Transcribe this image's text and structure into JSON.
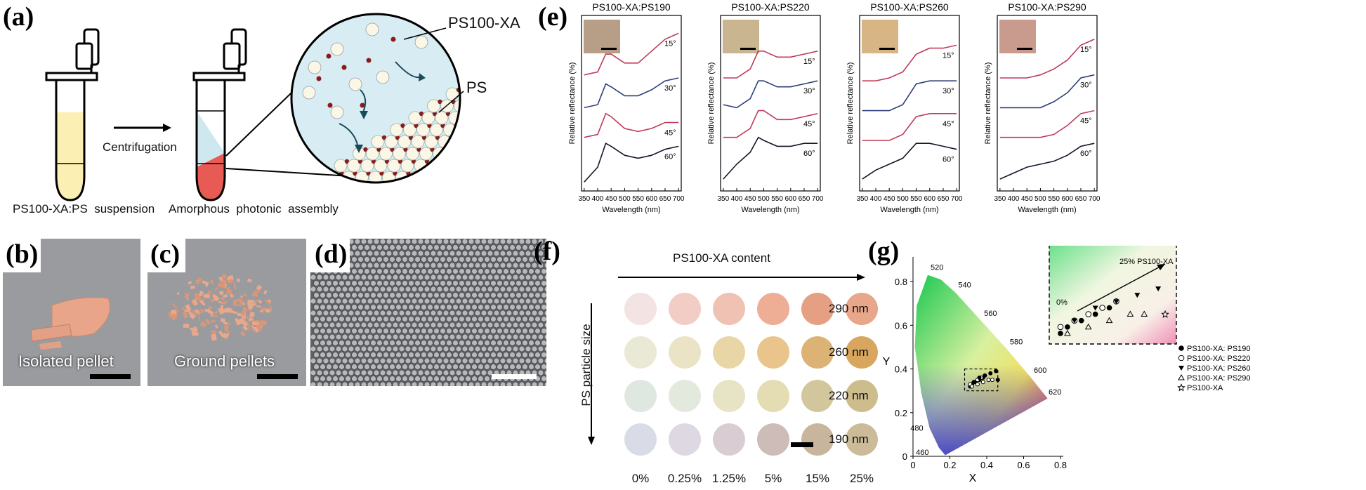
{
  "panel_a": {
    "letter": "(a)",
    "centrifugation": "Centrifugation",
    "suspension_caption": "PS100-XA:PS  suspension",
    "assembly_caption": "Amorphous  photonic  assembly",
    "label_xa": "PS100-XA",
    "label_ps": "PS"
  },
  "panel_b": {
    "letter": "(b)",
    "label": "Isolated pellet"
  },
  "panel_c": {
    "letter": "(c)",
    "label": "Ground pellets"
  },
  "panel_d": {
    "letter": "(d)"
  },
  "panel_e": {
    "letter": "(e)",
    "charts": [
      {
        "title": "PS100-XA:PS190",
        "inset": "#b79e86"
      },
      {
        "title": "PS100-XA:PS220",
        "inset": "#c9b590"
      },
      {
        "title": "PS100-XA:PS260",
        "inset": "#d7b585"
      },
      {
        "title": "PS100-XA:PS290",
        "inset": "#c99a8e"
      }
    ],
    "ylabel": "Relative reflectance (%)",
    "xlabel": "Wavelength (nm)",
    "xticks": [
      "350",
      "400",
      "450",
      "500",
      "550",
      "600",
      "650",
      "700"
    ],
    "angles": [
      "15°",
      "30°",
      "45°",
      "60°"
    ],
    "colors": [
      "#c03a5a",
      "#2d3f7a",
      "#c03a5a",
      "#101828"
    ]
  },
  "panel_f": {
    "letter": "(f)",
    "top_label": "PS100-XA content",
    "side_label": "PS particle size",
    "sizes": [
      "290 nm",
      "260 nm",
      "220 nm",
      "190 nm"
    ],
    "contents": [
      "0%",
      "0.25%",
      "1.25%",
      "5%",
      "15%",
      "25%"
    ],
    "swatches": [
      [
        "#f3e3e3",
        "#f1cdc6",
        "#f0c2b4",
        "#eeae96",
        "#e59f83",
        "#e8a68b"
      ],
      [
        "#e9e9d6",
        "#ebe3c6",
        "#e9d6a6",
        "#e9c58c",
        "#dcb275",
        "#d8a65f"
      ],
      [
        "#dfe8e0",
        "#e3eadd",
        "#e7e4c5",
        "#e4dcb3",
        "#d1c69c",
        "#cdbc8c"
      ],
      [
        "#d9dbe6",
        "#ddd8e2",
        "#d9cdd3",
        "#cdbcb8",
        "#c8b59e",
        "#cbbb98"
      ]
    ]
  },
  "panel_g": {
    "letter": "(g)",
    "inset_label": "25% PS100-XA",
    "inset_zero": "0%",
    "legend": [
      "PS100-XA: PS190",
      "PS100-XA: PS220",
      "PS100-XA: PS260",
      "PS100-XA: PS290",
      "PS100-XA"
    ],
    "xlabel": "X",
    "ylabel": "Y",
    "xticks": [
      "0",
      "0.2",
      "0.4",
      "0.6",
      "0.8"
    ],
    "yticks": [
      "0",
      "0.2",
      "0.4",
      "0.6",
      "0.8"
    ],
    "wavelength_marks": [
      "520",
      "540",
      "560",
      "580",
      "600",
      "620",
      "480",
      "460"
    ]
  },
  "chart_data": [
    {
      "type": "line",
      "title": "PS100-XA:PS190",
      "xlabel": "Wavelength (nm)",
      "ylabel": "Relative reflectance (%)",
      "xlim": [
        340,
        710
      ],
      "series": [
        {
          "name": "15°",
          "x": [
            350,
            400,
            430,
            450,
            500,
            550,
            600,
            650,
            700
          ],
          "y": [
            3.6,
            3.7,
            4.3,
            4.3,
            4.0,
            4.0,
            4.4,
            4.8,
            5.0
          ]
        },
        {
          "name": "30°",
          "x": [
            350,
            400,
            430,
            450,
            500,
            550,
            600,
            650,
            700
          ],
          "y": [
            2.5,
            2.6,
            3.3,
            3.2,
            2.9,
            2.9,
            3.1,
            3.4,
            3.5
          ]
        },
        {
          "name": "45°",
          "x": [
            350,
            400,
            430,
            450,
            500,
            550,
            600,
            650,
            700
          ],
          "y": [
            1.5,
            1.6,
            2.3,
            2.2,
            1.8,
            1.7,
            1.8,
            2.0,
            2.0
          ]
        },
        {
          "name": "60°",
          "x": [
            350,
            400,
            430,
            450,
            500,
            550,
            600,
            650,
            700
          ],
          "y": [
            0.0,
            0.5,
            1.3,
            1.2,
            0.9,
            0.8,
            0.9,
            1.1,
            1.2
          ]
        }
      ]
    },
    {
      "type": "line",
      "title": "PS100-XA:PS220",
      "xlabel": "Wavelength (nm)",
      "ylabel": "Relative reflectance (%)",
      "xlim": [
        340,
        710
      ],
      "series": [
        {
          "name": "15°",
          "x": [
            350,
            400,
            450,
            480,
            500,
            550,
            600,
            650,
            700
          ],
          "y": [
            3.5,
            3.5,
            3.8,
            4.4,
            4.4,
            4.2,
            4.2,
            4.3,
            4.4
          ]
        },
        {
          "name": "30°",
          "x": [
            350,
            400,
            450,
            480,
            500,
            550,
            600,
            650,
            700
          ],
          "y": [
            2.6,
            2.5,
            2.8,
            3.4,
            3.4,
            3.2,
            3.2,
            3.3,
            3.4
          ]
        },
        {
          "name": "45°",
          "x": [
            350,
            400,
            450,
            480,
            500,
            550,
            600,
            650,
            700
          ],
          "y": [
            1.5,
            1.5,
            1.8,
            2.4,
            2.4,
            2.1,
            2.1,
            2.2,
            2.3
          ]
        },
        {
          "name": "60°",
          "x": [
            350,
            400,
            450,
            480,
            500,
            550,
            600,
            650,
            700
          ],
          "y": [
            0.1,
            0.6,
            1.0,
            1.5,
            1.4,
            1.2,
            1.2,
            1.3,
            1.3
          ]
        }
      ]
    },
    {
      "type": "line",
      "title": "PS100-XA:PS260",
      "xlabel": "Wavelength (nm)",
      "ylabel": "Relative reflectance (%)",
      "xlim": [
        340,
        710
      ],
      "series": [
        {
          "name": "15°",
          "x": [
            350,
            400,
            450,
            500,
            550,
            600,
            650,
            700
          ],
          "y": [
            3.4,
            3.4,
            3.5,
            3.7,
            4.3,
            4.5,
            4.5,
            4.6
          ]
        },
        {
          "name": "30°",
          "x": [
            350,
            400,
            450,
            500,
            550,
            600,
            650,
            700
          ],
          "y": [
            2.4,
            2.4,
            2.4,
            2.6,
            3.3,
            3.4,
            3.4,
            3.4
          ]
        },
        {
          "name": "45°",
          "x": [
            350,
            400,
            450,
            500,
            550,
            600,
            650,
            700
          ],
          "y": [
            1.4,
            1.4,
            1.4,
            1.6,
            2.2,
            2.3,
            2.3,
            2.3
          ]
        },
        {
          "name": "60°",
          "x": [
            350,
            400,
            450,
            500,
            550,
            600,
            650,
            700
          ],
          "y": [
            0.1,
            0.4,
            0.6,
            0.8,
            1.3,
            1.3,
            1.2,
            1.1
          ]
        }
      ]
    },
    {
      "type": "line",
      "title": "PS100-XA:PS290",
      "xlabel": "Wavelength (nm)",
      "ylabel": "Relative reflectance (%)",
      "xlim": [
        340,
        710
      ],
      "series": [
        {
          "name": "15°",
          "x": [
            350,
            400,
            450,
            500,
            550,
            600,
            650,
            700
          ],
          "y": [
            3.5,
            3.5,
            3.5,
            3.6,
            3.8,
            4.1,
            4.6,
            4.8
          ]
        },
        {
          "name": "30°",
          "x": [
            350,
            400,
            450,
            500,
            550,
            600,
            650,
            700
          ],
          "y": [
            2.5,
            2.5,
            2.5,
            2.5,
            2.7,
            3.0,
            3.5,
            3.6
          ]
        },
        {
          "name": "45°",
          "x": [
            350,
            400,
            450,
            500,
            550,
            600,
            650,
            700
          ],
          "y": [
            1.5,
            1.5,
            1.5,
            1.5,
            1.6,
            1.9,
            2.3,
            2.4
          ]
        },
        {
          "name": "60°",
          "x": [
            350,
            400,
            450,
            500,
            550,
            600,
            650,
            700
          ],
          "y": [
            0.1,
            0.3,
            0.5,
            0.6,
            0.7,
            0.9,
            1.2,
            1.3
          ]
        }
      ]
    },
    {
      "type": "scatter",
      "xlabel": "X",
      "ylabel": "Y",
      "xlim": [
        0,
        0.8
      ],
      "ylim": [
        0,
        0.9
      ],
      "series": [
        {
          "name": "PS100-XA: PS190",
          "x": [
            0.31,
            0.32,
            0.34,
            0.36,
            0.38
          ],
          "y": [
            0.32,
            0.33,
            0.34,
            0.35,
            0.36
          ]
        },
        {
          "name": "PS100-XA: PS220",
          "x": [
            0.31,
            0.33,
            0.35,
            0.37,
            0.39
          ],
          "y": [
            0.33,
            0.34,
            0.35,
            0.36,
            0.37
          ]
        },
        {
          "name": "PS100-XA: PS260",
          "x": [
            0.33,
            0.36,
            0.39,
            0.42,
            0.45
          ],
          "y": [
            0.34,
            0.36,
            0.37,
            0.38,
            0.39
          ]
        },
        {
          "name": "PS100-XA: PS290",
          "x": [
            0.32,
            0.35,
            0.38,
            0.41,
            0.43
          ],
          "y": [
            0.32,
            0.33,
            0.34,
            0.35,
            0.35
          ]
        },
        {
          "name": "PS100-XA",
          "x": [
            0.46
          ],
          "y": [
            0.35
          ]
        }
      ]
    }
  ]
}
